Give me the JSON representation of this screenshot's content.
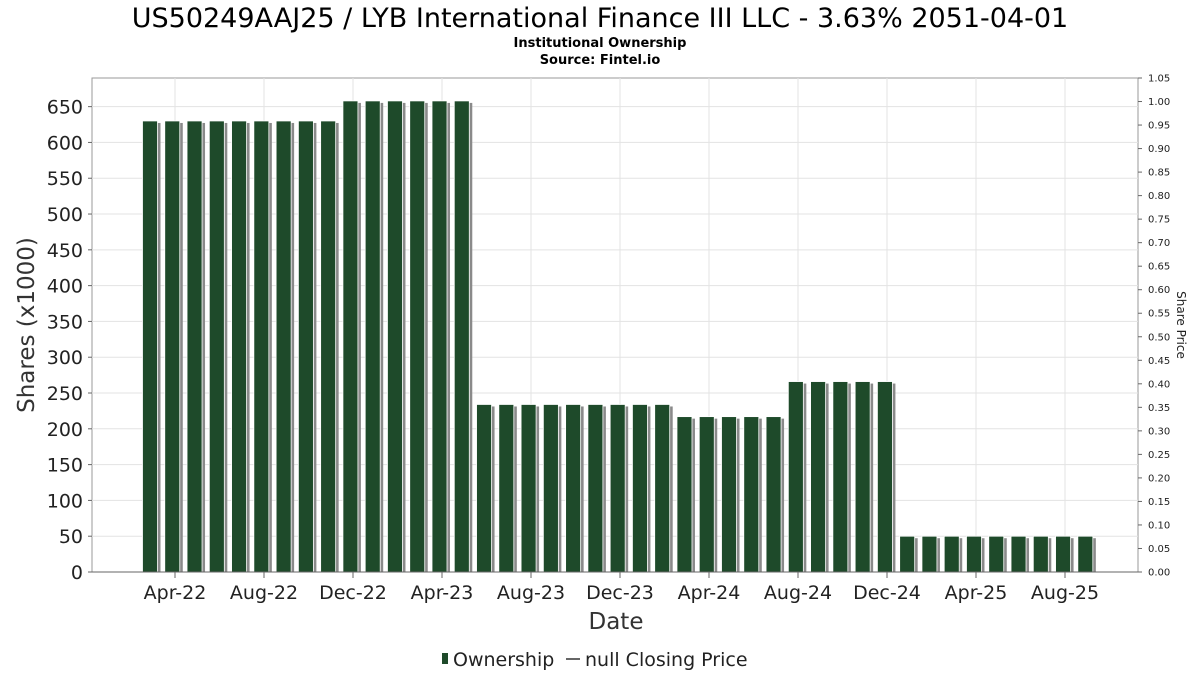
{
  "chart_data": {
    "type": "bar",
    "title": "US50249AAJ25 / LYB International Finance III LLC - 3.63% 2051-04-01",
    "subtitle": "Institutional Ownership",
    "source": "Source: Fintel.io",
    "xlabel": "Date",
    "ylabel": "Shares (x1000)",
    "y2label": "Share Price",
    "ylim": [
      0,
      690
    ],
    "y2lim": [
      0,
      1.05
    ],
    "y_ticks": [
      "0",
      "50",
      "100",
      "150",
      "200",
      "250",
      "300",
      "350",
      "400",
      "450",
      "500",
      "550",
      "600",
      "650"
    ],
    "y2_ticks": [
      "0.00",
      "0.05",
      "0.10",
      "0.15",
      "0.20",
      "0.25",
      "0.30",
      "0.35",
      "0.40",
      "0.45",
      "0.50",
      "0.55",
      "0.60",
      "0.65",
      "0.70",
      "0.75",
      "0.80",
      "0.85",
      "0.90",
      "0.95",
      "1.00",
      "1.05"
    ],
    "x_tick_labels": [
      "Apr-22",
      "Aug-22",
      "Dec-22",
      "Apr-23",
      "Aug-23",
      "Dec-23",
      "Apr-24",
      "Aug-24",
      "Dec-24",
      "Apr-25",
      "Aug-25"
    ],
    "grid": true,
    "legend_position": "bottom-center",
    "legend": [
      {
        "label": "Ownership",
        "marker": "bar"
      },
      {
        "label": "null Closing Price",
        "marker": "line"
      }
    ],
    "series": [
      {
        "name": "Ownership",
        "color": "#1e4a2a",
        "values": [
          630,
          630,
          630,
          630,
          630,
          630,
          630,
          630,
          630,
          658,
          658,
          658,
          658,
          658,
          658,
          234,
          234,
          234,
          234,
          234,
          234,
          234,
          234,
          234,
          217,
          217,
          217,
          217,
          217,
          266,
          266,
          266,
          266,
          266,
          50,
          50,
          50,
          50,
          50,
          50,
          50,
          50,
          50
        ]
      }
    ]
  }
}
